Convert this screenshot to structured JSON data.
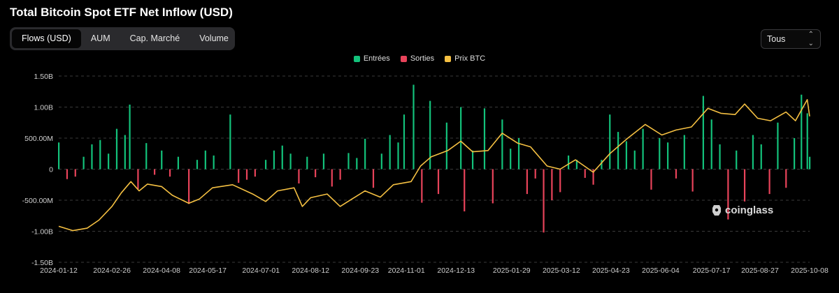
{
  "title": "Total Bitcoin Spot ETF Net Inflow (USD)",
  "tabs": [
    {
      "label": "Flows (USD)",
      "active": true
    },
    {
      "label": "AUM",
      "active": false
    },
    {
      "label": "Cap. Marché",
      "active": false
    },
    {
      "label": "Volume",
      "active": false
    }
  ],
  "range_select": {
    "value": "Tous"
  },
  "watermark": "coinglass",
  "colors": {
    "inflow": "#13c27b",
    "outflow": "#e8435a",
    "price": "#f5c042",
    "grid": "#3a3a3a"
  },
  "chart_data": {
    "type": "bar",
    "title": "Total Bitcoin Spot ETF Net Inflow (USD)",
    "xlabel": "",
    "ylabel": "",
    "ylim": [
      -1500000000,
      1500000000
    ],
    "y_tick_labels": [
      "1.50B",
      "1.00B",
      "500.00M",
      "0",
      "-500.00M",
      "-1.00B",
      "-1.50B"
    ],
    "x_tick_labels": [
      "2024-01-12",
      "2024-02-26",
      "2024-04-08",
      "2024-05-17",
      "2024-07-01",
      "2024-08-12",
      "2024-09-23",
      "2024-11-01",
      "2024-12-13",
      "2025-01-29",
      "2025-03-12",
      "2025-04-23",
      "2025-06-04",
      "2025-07-17",
      "2025-08-27",
      "2025-10-08"
    ],
    "legend_position": "top-center",
    "grid": true,
    "series": [
      {
        "name": "Entrées",
        "kind": "bar",
        "color": "#13c27b"
      },
      {
        "name": "Sorties",
        "kind": "bar",
        "color": "#e8435a"
      },
      {
        "name": "Prix BTC",
        "kind": "line",
        "color": "#f5c042"
      }
    ],
    "flows": [
      {
        "date": "2024-01-12",
        "value": 430000000
      },
      {
        "date": "2024-01-19",
        "value": -160000000
      },
      {
        "date": "2024-01-26",
        "value": -120000000
      },
      {
        "date": "2024-02-02",
        "value": 200000000
      },
      {
        "date": "2024-02-09",
        "value": 400000000
      },
      {
        "date": "2024-02-16",
        "value": 470000000
      },
      {
        "date": "2024-02-23",
        "value": 250000000
      },
      {
        "date": "2024-03-01",
        "value": 650000000
      },
      {
        "date": "2024-03-08",
        "value": 550000000
      },
      {
        "date": "2024-03-12",
        "value": 1040000000
      },
      {
        "date": "2024-03-19",
        "value": -320000000
      },
      {
        "date": "2024-03-26",
        "value": 420000000
      },
      {
        "date": "2024-04-02",
        "value": -90000000
      },
      {
        "date": "2024-04-08",
        "value": 300000000
      },
      {
        "date": "2024-04-15",
        "value": -120000000
      },
      {
        "date": "2024-04-22",
        "value": 200000000
      },
      {
        "date": "2024-05-01",
        "value": -560000000
      },
      {
        "date": "2024-05-08",
        "value": 150000000
      },
      {
        "date": "2024-05-15",
        "value": 300000000
      },
      {
        "date": "2024-05-22",
        "value": 220000000
      },
      {
        "date": "2024-06-05",
        "value": 880000000
      },
      {
        "date": "2024-06-12",
        "value": -220000000
      },
      {
        "date": "2024-06-19",
        "value": -170000000
      },
      {
        "date": "2024-06-26",
        "value": -120000000
      },
      {
        "date": "2024-07-05",
        "value": 150000000
      },
      {
        "date": "2024-07-12",
        "value": 300000000
      },
      {
        "date": "2024-07-19",
        "value": 380000000
      },
      {
        "date": "2024-07-26",
        "value": 250000000
      },
      {
        "date": "2024-08-02",
        "value": -230000000
      },
      {
        "date": "2024-08-09",
        "value": 200000000
      },
      {
        "date": "2024-08-16",
        "value": -130000000
      },
      {
        "date": "2024-08-23",
        "value": 250000000
      },
      {
        "date": "2024-08-30",
        "value": -280000000
      },
      {
        "date": "2024-09-06",
        "value": -170000000
      },
      {
        "date": "2024-09-13",
        "value": 260000000
      },
      {
        "date": "2024-09-20",
        "value": 180000000
      },
      {
        "date": "2024-09-27",
        "value": 490000000
      },
      {
        "date": "2024-10-04",
        "value": -300000000
      },
      {
        "date": "2024-10-11",
        "value": 250000000
      },
      {
        "date": "2024-10-18",
        "value": 550000000
      },
      {
        "date": "2024-10-25",
        "value": 430000000
      },
      {
        "date": "2024-10-30",
        "value": 880000000
      },
      {
        "date": "2024-11-07",
        "value": 1360000000
      },
      {
        "date": "2024-11-14",
        "value": -540000000
      },
      {
        "date": "2024-11-21",
        "value": 1100000000
      },
      {
        "date": "2024-11-28",
        "value": -400000000
      },
      {
        "date": "2024-12-05",
        "value": 750000000
      },
      {
        "date": "2024-12-17",
        "value": 1000000000
      },
      {
        "date": "2024-12-20",
        "value": -680000000
      },
      {
        "date": "2024-12-27",
        "value": 300000000
      },
      {
        "date": "2025-01-06",
        "value": 980000000
      },
      {
        "date": "2025-01-13",
        "value": -550000000
      },
      {
        "date": "2025-01-21",
        "value": 800000000
      },
      {
        "date": "2025-01-28",
        "value": 330000000
      },
      {
        "date": "2025-02-04",
        "value": 500000000
      },
      {
        "date": "2025-02-11",
        "value": -400000000
      },
      {
        "date": "2025-02-18",
        "value": -150000000
      },
      {
        "date": "2025-02-25",
        "value": -1020000000
      },
      {
        "date": "2025-03-04",
        "value": -500000000
      },
      {
        "date": "2025-03-11",
        "value": -370000000
      },
      {
        "date": "2025-03-18",
        "value": 220000000
      },
      {
        "date": "2025-03-25",
        "value": 150000000
      },
      {
        "date": "2025-04-01",
        "value": -140000000
      },
      {
        "date": "2025-04-08",
        "value": -250000000
      },
      {
        "date": "2025-04-15",
        "value": 150000000
      },
      {
        "date": "2025-04-22",
        "value": 880000000
      },
      {
        "date": "2025-04-29",
        "value": 600000000
      },
      {
        "date": "2025-05-06",
        "value": 450000000
      },
      {
        "date": "2025-05-13",
        "value": 300000000
      },
      {
        "date": "2025-05-20",
        "value": 650000000
      },
      {
        "date": "2025-05-27",
        "value": -330000000
      },
      {
        "date": "2025-06-03",
        "value": 500000000
      },
      {
        "date": "2025-06-10",
        "value": 430000000
      },
      {
        "date": "2025-06-17",
        "value": -150000000
      },
      {
        "date": "2025-06-24",
        "value": 550000000
      },
      {
        "date": "2025-07-01",
        "value": -360000000
      },
      {
        "date": "2025-07-10",
        "value": 1180000000
      },
      {
        "date": "2025-07-17",
        "value": 800000000
      },
      {
        "date": "2025-07-24",
        "value": 400000000
      },
      {
        "date": "2025-07-31",
        "value": -810000000
      },
      {
        "date": "2025-08-07",
        "value": 300000000
      },
      {
        "date": "2025-08-14",
        "value": -520000000
      },
      {
        "date": "2025-08-21",
        "value": 550000000
      },
      {
        "date": "2025-08-28",
        "value": 400000000
      },
      {
        "date": "2025-09-04",
        "value": -400000000
      },
      {
        "date": "2025-09-11",
        "value": 750000000
      },
      {
        "date": "2025-09-18",
        "value": -300000000
      },
      {
        "date": "2025-09-25",
        "value": 500000000
      },
      {
        "date": "2025-10-01",
        "value": 1200000000
      },
      {
        "date": "2025-10-06",
        "value": 900000000
      },
      {
        "date": "2025-10-08",
        "value": 200000000
      }
    ],
    "price_btc": [
      {
        "date": "2024-01-12",
        "rel": -0.92
      },
      {
        "date": "2024-01-24",
        "rel": -0.99
      },
      {
        "date": "2024-02-05",
        "rel": -0.95
      },
      {
        "date": "2024-02-15",
        "rel": -0.82
      },
      {
        "date": "2024-02-26",
        "rel": -0.6
      },
      {
        "date": "2024-03-05",
        "rel": -0.38
      },
      {
        "date": "2024-03-13",
        "rel": -0.2
      },
      {
        "date": "2024-03-20",
        "rel": -0.35
      },
      {
        "date": "2024-03-27",
        "rel": -0.24
      },
      {
        "date": "2024-04-08",
        "rel": -0.28
      },
      {
        "date": "2024-04-17",
        "rel": -0.42
      },
      {
        "date": "2024-05-01",
        "rel": -0.55
      },
      {
        "date": "2024-05-10",
        "rel": -0.48
      },
      {
        "date": "2024-05-21",
        "rel": -0.3
      },
      {
        "date": "2024-06-07",
        "rel": -0.25
      },
      {
        "date": "2024-06-24",
        "rel": -0.4
      },
      {
        "date": "2024-07-05",
        "rel": -0.52
      },
      {
        "date": "2024-07-15",
        "rel": -0.35
      },
      {
        "date": "2024-07-29",
        "rel": -0.3
      },
      {
        "date": "2024-08-05",
        "rel": -0.6
      },
      {
        "date": "2024-08-12",
        "rel": -0.46
      },
      {
        "date": "2024-08-26",
        "rel": -0.4
      },
      {
        "date": "2024-09-06",
        "rel": -0.6
      },
      {
        "date": "2024-09-16",
        "rel": -0.48
      },
      {
        "date": "2024-09-27",
        "rel": -0.35
      },
      {
        "date": "2024-10-10",
        "rel": -0.45
      },
      {
        "date": "2024-10-21",
        "rel": -0.25
      },
      {
        "date": "2024-11-05",
        "rel": -0.2
      },
      {
        "date": "2024-11-13",
        "rel": 0.05
      },
      {
        "date": "2024-11-22",
        "rel": 0.2
      },
      {
        "date": "2024-12-06",
        "rel": 0.3
      },
      {
        "date": "2024-12-17",
        "rel": 0.45
      },
      {
        "date": "2024-12-27",
        "rel": 0.28
      },
      {
        "date": "2025-01-09",
        "rel": 0.3
      },
      {
        "date": "2025-01-21",
        "rel": 0.58
      },
      {
        "date": "2025-02-03",
        "rel": 0.42
      },
      {
        "date": "2025-02-14",
        "rel": 0.36
      },
      {
        "date": "2025-02-28",
        "rel": 0.05
      },
      {
        "date": "2025-03-11",
        "rel": 0.0
      },
      {
        "date": "2025-03-24",
        "rel": 0.15
      },
      {
        "date": "2025-04-08",
        "rel": -0.05
      },
      {
        "date": "2025-04-22",
        "rel": 0.25
      },
      {
        "date": "2025-05-06",
        "rel": 0.48
      },
      {
        "date": "2025-05-22",
        "rel": 0.72
      },
      {
        "date": "2025-06-05",
        "rel": 0.55
      },
      {
        "date": "2025-06-17",
        "rel": 0.63
      },
      {
        "date": "2025-06-30",
        "rel": 0.68
      },
      {
        "date": "2025-07-14",
        "rel": 0.98
      },
      {
        "date": "2025-07-25",
        "rel": 0.9
      },
      {
        "date": "2025-08-06",
        "rel": 0.88
      },
      {
        "date": "2025-08-14",
        "rel": 1.05
      },
      {
        "date": "2025-08-25",
        "rel": 0.82
      },
      {
        "date": "2025-09-05",
        "rel": 0.78
      },
      {
        "date": "2025-09-18",
        "rel": 0.92
      },
      {
        "date": "2025-09-26",
        "rel": 0.78
      },
      {
        "date": "2025-10-06",
        "rel": 1.12
      },
      {
        "date": "2025-10-08",
        "rel": 0.85
      }
    ]
  }
}
